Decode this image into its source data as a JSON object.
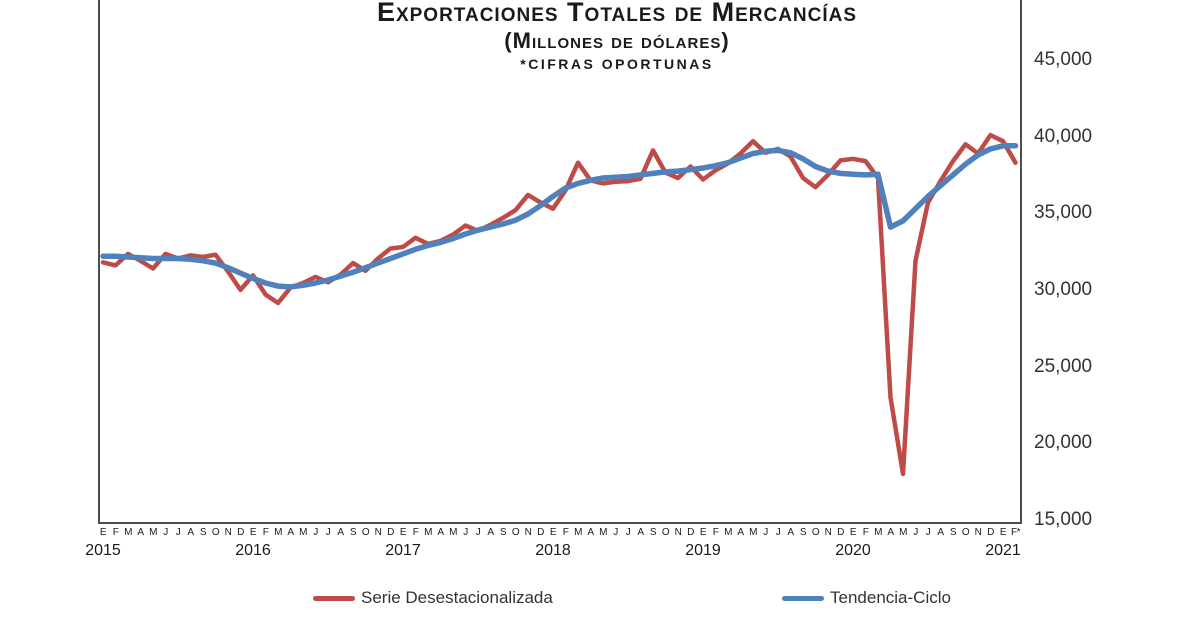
{
  "title": {
    "line1": "Exportaciones Totales de Mercancías",
    "line2": "(Millones de dólares)",
    "line3": "*CIFRAS OPORTUNAS"
  },
  "legend": {
    "series1": "Serie Desestacionalizada",
    "series2": "Tendencia-Ciclo"
  },
  "colors": {
    "serie_desestacionalizada": "#BE4B48",
    "tendencia_ciclo": "#4F81BD",
    "axis": "#4d4d4d",
    "text": "#262626"
  },
  "y_axis": {
    "tick_labels": [
      "45,000",
      "40,000",
      "35,000",
      "30,000",
      "25,000",
      "20,000",
      "15,000"
    ],
    "tick_values": [
      45000,
      40000,
      35000,
      30000,
      25000,
      20000,
      15000
    ],
    "min": 15000,
    "max": 45000
  },
  "x_axis": {
    "years": [
      "2015",
      "2016",
      "2017",
      "2018",
      "2019",
      "2020",
      "2021"
    ],
    "month_letters_full_year": [
      "E",
      "F",
      "M",
      "A",
      "M",
      "J",
      "J",
      "A",
      "S",
      "O",
      "N",
      "D"
    ],
    "last_year_months": [
      "E",
      "F*"
    ]
  },
  "chart_data": {
    "type": "line",
    "title": "Exportaciones Totales de Mercancías (Millones de dólares) *Cifras Oportunas",
    "x_unit": "month",
    "x_start": "2015-01",
    "x_end": "2021-02",
    "ylim": [
      15000,
      45000
    ],
    "grid": false,
    "legend_position": "bottom",
    "x_labels": [
      "E",
      "F",
      "M",
      "A",
      "M",
      "J",
      "J",
      "A",
      "S",
      "O",
      "N",
      "D",
      "E",
      "F",
      "M",
      "A",
      "M",
      "J",
      "J",
      "A",
      "S",
      "O",
      "N",
      "D",
      "E",
      "F",
      "M",
      "A",
      "M",
      "J",
      "J",
      "A",
      "S",
      "O",
      "N",
      "D",
      "E",
      "F",
      "M",
      "A",
      "M",
      "J",
      "J",
      "A",
      "S",
      "O",
      "N",
      "D",
      "E",
      "F",
      "M",
      "A",
      "M",
      "J",
      "J",
      "A",
      "S",
      "O",
      "N",
      "D",
      "E",
      "F",
      "M",
      "A",
      "M",
      "J",
      "J",
      "A",
      "S",
      "O",
      "N",
      "D",
      "E",
      "F*"
    ],
    "series": [
      {
        "name": "Serie Desestacionalizada",
        "color": "#BE4B48",
        "values": [
          32000,
          31800,
          32550,
          32100,
          31600,
          32550,
          32250,
          32450,
          32350,
          32500,
          31400,
          30200,
          31150,
          29900,
          29350,
          30350,
          30650,
          31050,
          30700,
          31200,
          31950,
          31450,
          32250,
          32900,
          33000,
          33600,
          33200,
          33400,
          33800,
          34400,
          34050,
          34450,
          34900,
          35400,
          36400,
          35900,
          35500,
          36700,
          38500,
          37350,
          37150,
          37250,
          37300,
          37450,
          39300,
          37850,
          37500,
          38250,
          37400,
          38000,
          38450,
          39100,
          39900,
          39150,
          39400,
          38900,
          37500,
          36900,
          37700,
          38650,
          38750,
          38600,
          37500,
          23200,
          18200,
          32100,
          35900,
          37300,
          38600,
          39700,
          39100,
          40300,
          39900,
          38500
        ]
      },
      {
        "name": "Tendencia-Ciclo",
        "color": "#4F81BD",
        "values": [
          32400,
          32400,
          32350,
          32300,
          32250,
          32250,
          32250,
          32200,
          32100,
          31950,
          31650,
          31300,
          30950,
          30650,
          30450,
          30400,
          30500,
          30650,
          30850,
          31100,
          31350,
          31650,
          31950,
          32250,
          32550,
          32850,
          33100,
          33300,
          33550,
          33850,
          34100,
          34300,
          34500,
          34750,
          35150,
          35700,
          36300,
          36850,
          37150,
          37350,
          37500,
          37550,
          37600,
          37700,
          37800,
          37900,
          37950,
          38050,
          38150,
          38300,
          38500,
          38800,
          39100,
          39250,
          39300,
          39150,
          38750,
          38250,
          37950,
          37800,
          37750,
          37700,
          37750,
          34300,
          34700,
          35500,
          36300,
          37000,
          37700,
          38400,
          39000,
          39400,
          39600,
          39600
        ]
      }
    ]
  }
}
